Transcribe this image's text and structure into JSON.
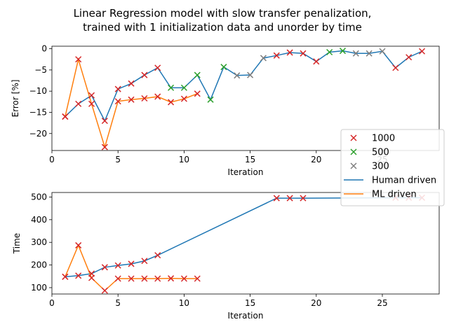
{
  "title_line1": "Linear Regression model with slow transfer  penalization,",
  "title_line2": "trained with 1 initialization data and unorder by time",
  "colors": {
    "human": "#1f77b4",
    "ml": "#ff7f0e",
    "m1000": "#d62728",
    "m500": "#2ca02c",
    "m300": "#7f7f7f"
  },
  "legend": {
    "entries": [
      {
        "label": "1000",
        "kind": "marker",
        "color_key": "m1000"
      },
      {
        "label": "500",
        "kind": "marker",
        "color_key": "m500"
      },
      {
        "label": "300",
        "kind": "marker",
        "color_key": "m300"
      },
      {
        "label": "Human driven",
        "kind": "line",
        "color_key": "human"
      },
      {
        "label": "ML driven",
        "kind": "line",
        "color_key": "ml"
      }
    ]
  },
  "chart_data": [
    {
      "type": "line",
      "xlabel": "Iteration",
      "ylabel": "Error [%]",
      "xlim": [
        0,
        29.3
      ],
      "ylim": [
        -24,
        0.6
      ],
      "xticks": [
        0,
        5,
        10,
        15,
        20,
        25
      ],
      "yticks": [
        0,
        -5,
        -10,
        -15,
        -20
      ],
      "series": [
        {
          "name": "Human driven",
          "color_key": "human",
          "x": [
            1,
            2,
            3,
            4,
            5,
            6,
            7,
            8,
            9,
            10,
            11,
            12,
            13,
            14,
            15,
            16,
            17,
            18,
            19,
            20,
            21,
            22,
            23,
            24,
            25,
            26,
            27,
            28
          ],
          "y": [
            -16,
            -13,
            -11,
            -17,
            -9.5,
            -8.2,
            -6.2,
            -4.5,
            -9.2,
            -9.2,
            -6.2,
            -12,
            -4.3,
            -6.3,
            -6.2,
            -2.2,
            -1.6,
            -0.9,
            -1.1,
            -3,
            -0.8,
            -0.5,
            -1.1,
            -1.1,
            -0.6,
            -4.5,
            -2,
            -0.6
          ],
          "marker": [
            "1000",
            "1000",
            "1000",
            "1000",
            "1000",
            "1000",
            "1000",
            "1000",
            "500",
            "500",
            "500",
            "500",
            "500",
            "300",
            "300",
            "300",
            "1000",
            "1000",
            "1000",
            "1000",
            "500",
            "500",
            "300",
            "300",
            "300",
            "1000",
            "1000",
            "1000"
          ]
        },
        {
          "name": "ML driven",
          "color_key": "ml",
          "x": [
            1,
            2,
            3,
            4,
            5,
            6,
            7,
            8,
            9,
            10,
            11
          ],
          "y": [
            -16,
            -2.5,
            -13,
            -23.2,
            -12.4,
            -12,
            -11.7,
            -11.3,
            -12.6,
            -11.8,
            -10.6
          ],
          "marker": [
            "1000",
            "1000",
            "1000",
            "1000",
            "1000",
            "1000",
            "1000",
            "1000",
            "1000",
            "1000",
            "1000"
          ]
        }
      ]
    },
    {
      "type": "line",
      "xlabel": "Iteration",
      "ylabel": "Time",
      "xlim": [
        0,
        29.3
      ],
      "ylim": [
        72,
        520
      ],
      "xticks": [
        0,
        5,
        10,
        15,
        20,
        25
      ],
      "yticks": [
        100,
        200,
        300,
        400,
        500
      ],
      "series": [
        {
          "name": "Human driven",
          "color_key": "human",
          "x": [
            1,
            2,
            3,
            4,
            5,
            6,
            7,
            8,
            17,
            18,
            19,
            26,
            27,
            28
          ],
          "y": [
            148,
            153,
            162,
            190,
            198,
            205,
            218,
            243,
            495,
            495,
            495,
            497,
            497,
            497
          ],
          "marker": [
            "1000",
            "1000",
            "1000",
            "1000",
            "1000",
            "1000",
            "1000",
            "1000",
            "1000",
            "1000",
            "1000",
            "1000",
            "1000",
            "1000"
          ]
        },
        {
          "name": "ML driven",
          "color_key": "ml",
          "x": [
            1,
            2,
            3,
            4,
            5,
            6,
            7,
            8,
            9,
            10,
            11
          ],
          "y": [
            148,
            287,
            143,
            87,
            140,
            140,
            140,
            140,
            141,
            140,
            140
          ],
          "marker": [
            "1000",
            "1000",
            "1000",
            "1000",
            "1000",
            "1000",
            "1000",
            "1000",
            "1000",
            "1000",
            "1000"
          ]
        }
      ]
    }
  ]
}
